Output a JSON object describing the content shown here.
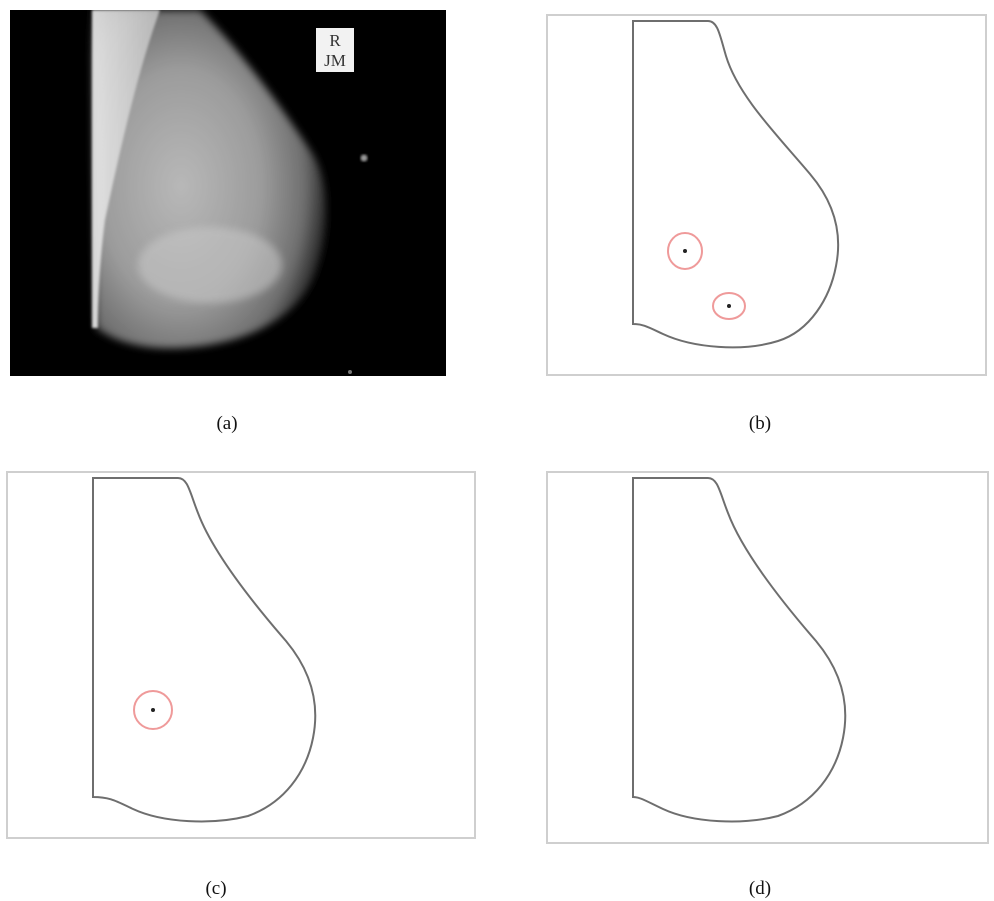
{
  "figure": {
    "panels": [
      {
        "id": "a",
        "caption": "(a)",
        "kind": "mammogram",
        "marker_text": [
          "R",
          "JM"
        ]
      },
      {
        "id": "b",
        "caption": "(b)",
        "kind": "contour",
        "detections": 2
      },
      {
        "id": "c",
        "caption": "(c)",
        "kind": "contour",
        "detections": 1
      },
      {
        "id": "d",
        "caption": "(d)",
        "kind": "contour",
        "detections": 0
      }
    ]
  },
  "colors": {
    "contour": "#6e6e6e",
    "detection_ring": "#ef9a9a",
    "frame": "#cfcfcf",
    "background_dark": "#000000"
  }
}
